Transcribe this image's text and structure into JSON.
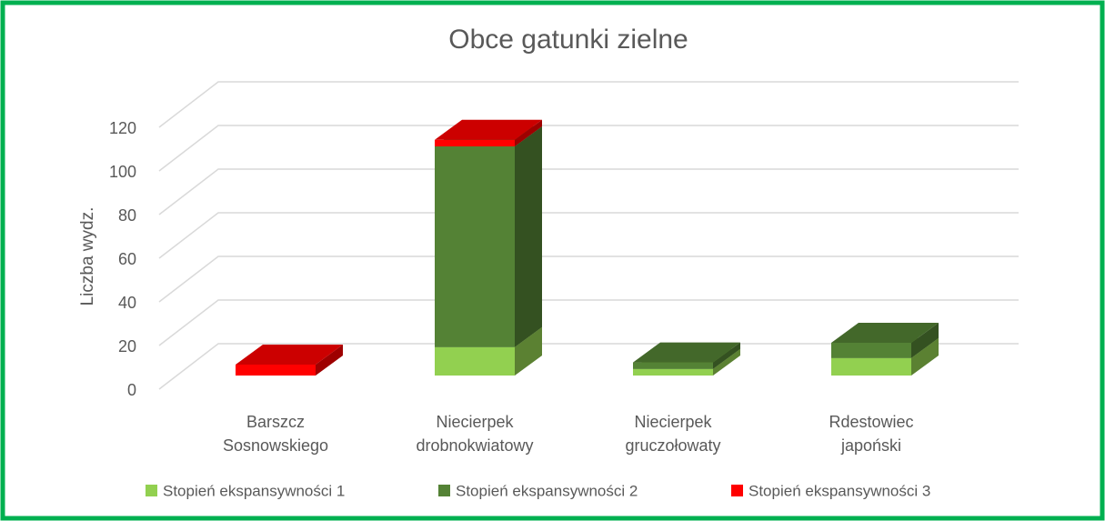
{
  "chart_data": {
    "type": "bar3d_stacked",
    "title": "Obce gatunki zielne",
    "y_label": "Liczba wydz.",
    "categories": [
      [
        "Barszcz",
        "Sosnowskiego"
      ],
      [
        "Niecierpek",
        "drobnokwiatowy"
      ],
      [
        "Niecierpek",
        "gruczołowaty"
      ],
      [
        "Rdestowiec",
        "japoński"
      ]
    ],
    "series": [
      {
        "name": "Stopień ekspansywności 1",
        "color": "#92d050",
        "values": [
          0,
          13,
          3,
          8
        ]
      },
      {
        "name": "Stopień ekspansywności 2",
        "color": "#548235",
        "values": [
          0,
          92,
          3,
          7
        ]
      },
      {
        "name": "Stopień ekspansywności 3",
        "color": "#ff0000",
        "values": [
          5,
          3,
          0,
          0
        ]
      }
    ],
    "ylim": [
      0,
      120
    ],
    "yticks": [
      0,
      20,
      40,
      60,
      80,
      100,
      120
    ],
    "grid": true
  }
}
